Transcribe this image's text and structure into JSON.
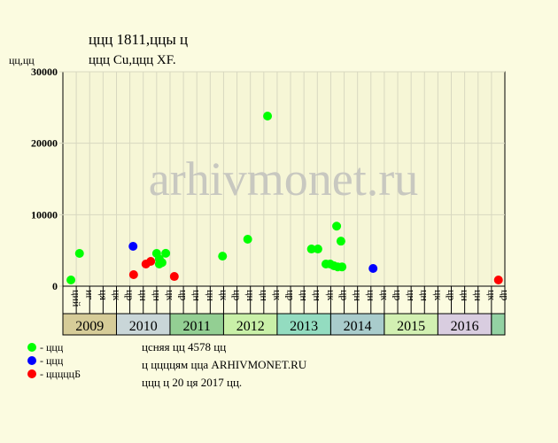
{
  "chart_data": {
    "type": "scatter",
    "title": "ццц 1811,ццы ц",
    "subtitle": "ццц Cu,ццц XF.",
    "y_label": "цц,цц",
    "watermark": "arhivmonet.ru",
    "ylim": [
      0,
      30000
    ],
    "yticks": [
      0,
      10000,
      20000,
      30000
    ],
    "xlim": [
      2009,
      2017.25
    ],
    "columns": [
      "ций",
      "иг",
      "ця",
      "цк",
      "цр",
      "цн",
      "цн",
      "цк",
      "цр",
      "цн",
      "цн",
      "цк",
      "цр",
      "цн",
      "цн",
      "цк",
      "цр",
      "цн",
      "цн",
      "цк",
      "цр",
      "цн",
      "цн",
      "цк",
      "цр",
      "цн",
      "цн",
      "цк",
      "цр",
      "цн",
      "цн",
      "цк",
      "цр"
    ],
    "years": [
      "2009",
      "2010",
      "2011",
      "2012",
      "2013",
      "2014",
      "2015",
      "2016",
      null
    ],
    "year_colors": [
      "#d6cc98",
      "#c9d6d8",
      "#93cf93",
      "#c9f0a8",
      "#93dcc0",
      "#a9cccc",
      "#d2f0b2",
      "#d9cde0",
      "#93d2a3"
    ],
    "series": [
      {
        "name": "- ццц",
        "color": "#00ff00",
        "x": [
          2009.15,
          2009.31,
          2010.75,
          2010.8,
          2010.8,
          2010.85,
          2010.92,
          2011.98,
          2012.45,
          2012.82,
          2013.64,
          2013.76,
          2013.91,
          2013.99,
          2014.06,
          2014.13,
          2014.21,
          2014.11,
          2014.19
        ],
        "values": [
          870,
          4590,
          4590,
          3800,
          3100,
          3300,
          4600,
          4200,
          6570,
          23800,
          5200,
          5200,
          3100,
          3100,
          2850,
          2700,
          2700,
          8400,
          6300
        ]
      },
      {
        "name": "- ццц",
        "color": "#0000ff",
        "x": [
          2010.31,
          2014.79
        ],
        "values": [
          5580,
          2480
        ]
      },
      {
        "name": "- цццццБ",
        "color": "#ff0000",
        "x": [
          2010.32,
          2010.55,
          2010.64,
          2011.08,
          2017.13
        ],
        "values": [
          1610,
          3100,
          3470,
          1360,
          870
        ]
      }
    ],
    "notes": [
      "цcняя цц 4578 цц",
      "ц ццццям цца ARHIVMONET.RU",
      "ццц ц 20 ця 2017 цц."
    ]
  }
}
